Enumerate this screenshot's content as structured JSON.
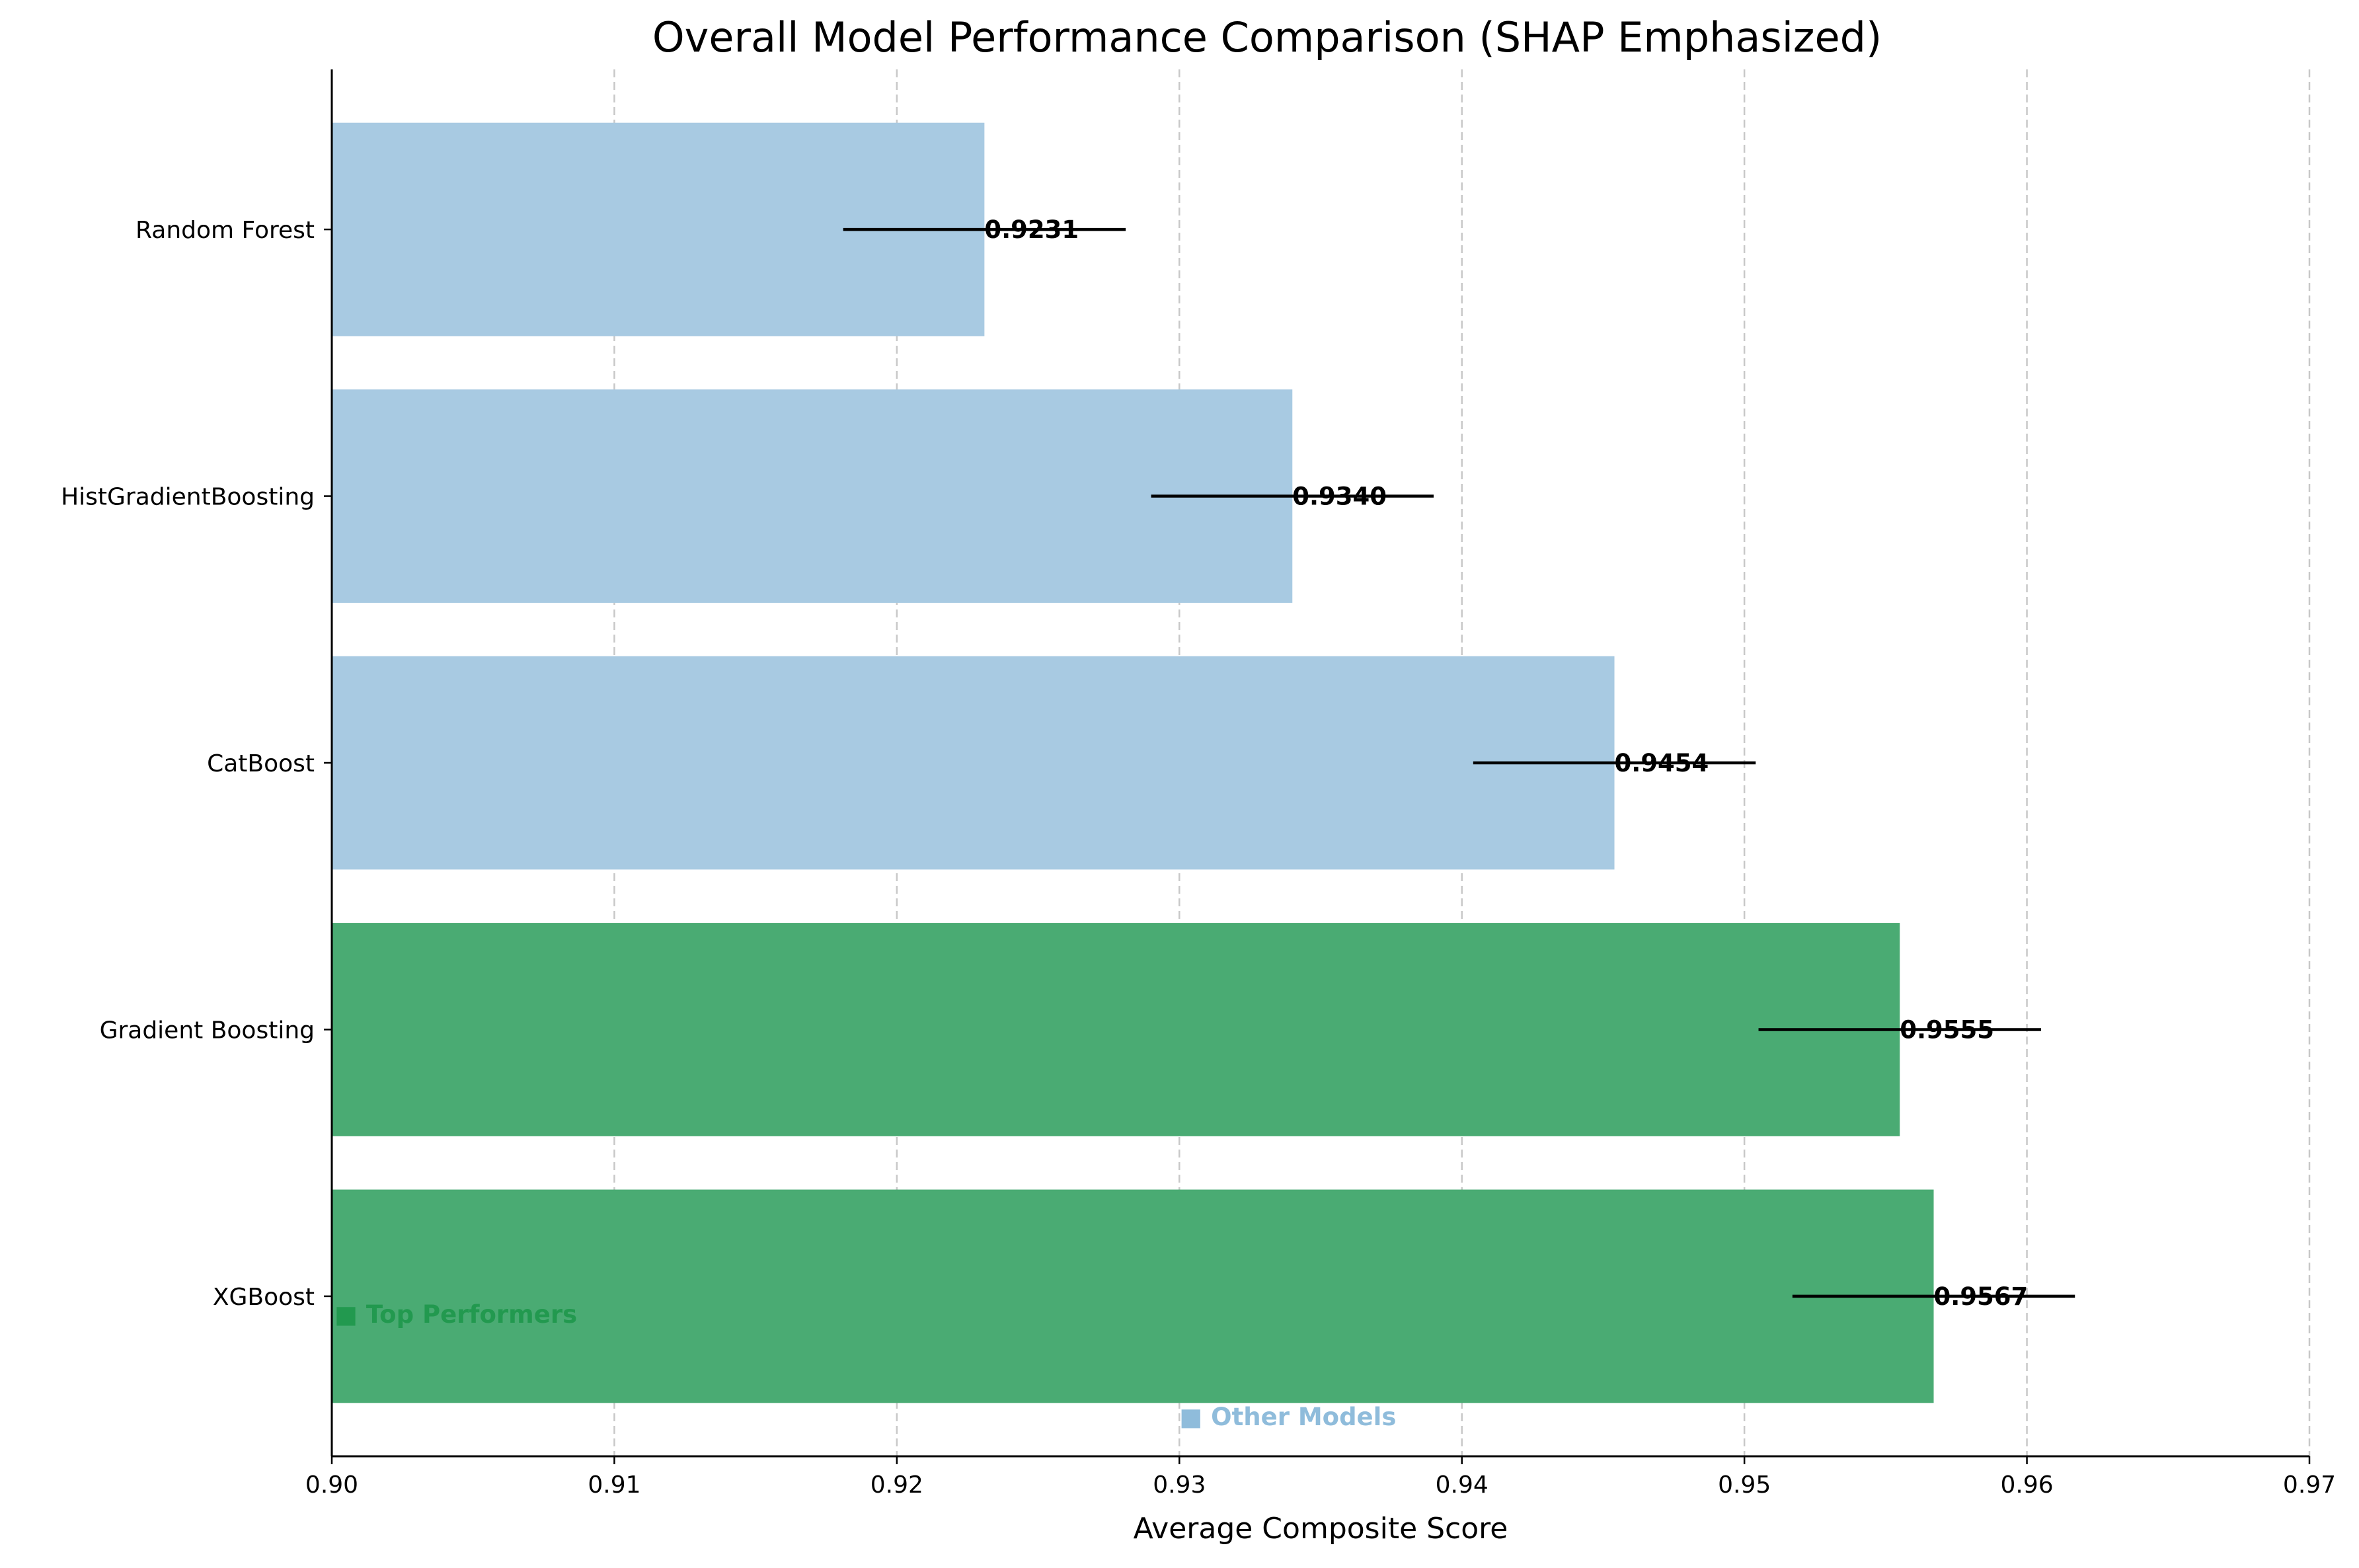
{
  "chart_data": {
    "type": "bar",
    "orientation": "horizontal",
    "title": "Overall Model Performance Comparison (SHAP Emphasized)",
    "xlabel": "Average Composite Score",
    "ylabel": "",
    "xlim": [
      0.9,
      0.97
    ],
    "xticks": [
      "0.90",
      "0.91",
      "0.92",
      "0.93",
      "0.94",
      "0.95",
      "0.96",
      "0.97"
    ],
    "grid": "x, dashed",
    "categories": [
      "XGBoost",
      "Gradient Boosting",
      "CatBoost",
      "HistGradientBoosting",
      "Random Forest"
    ],
    "values": [
      0.9567,
      0.9555,
      0.9454,
      0.934,
      0.9231
    ],
    "value_labels": [
      "0.9567",
      "0.9555",
      "0.9454",
      "0.9340",
      "0.9231"
    ],
    "error": [
      0.005,
      0.005,
      0.005,
      0.005,
      0.005
    ],
    "groups": [
      "top",
      "top",
      "other",
      "other",
      "other"
    ],
    "colors": {
      "top": "#4aab73",
      "other": "#a8cae2",
      "error": "#000000",
      "grid": "#c8c8c8"
    },
    "legend": [
      {
        "label": "■ Top Performers",
        "color": "#22994f",
        "placement": "lower-left"
      },
      {
        "label": "■ Other Models",
        "color": "#8fbcdb",
        "placement": "bottom-center"
      }
    ]
  }
}
